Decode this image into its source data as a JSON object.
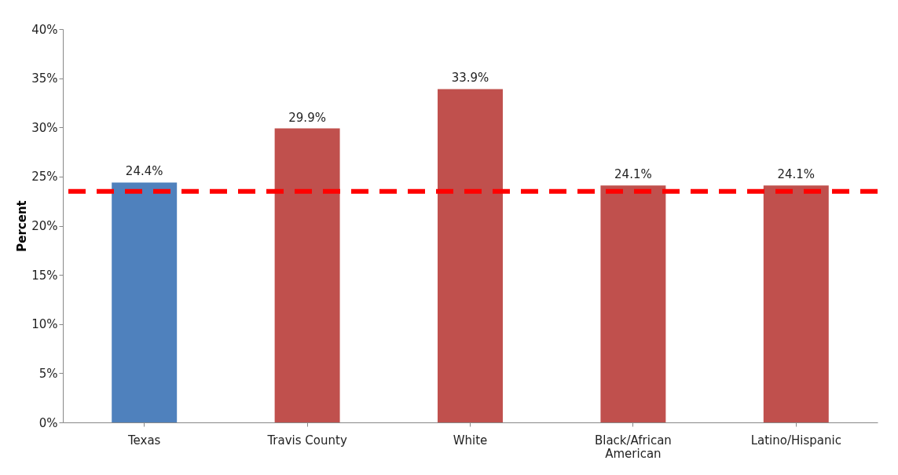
{
  "chart_data": {
    "type": "bar",
    "ylabel": "Percent",
    "categories": [
      "Texas",
      "Travis County",
      "White",
      "Black/African American",
      "Latino/Hispanic"
    ],
    "values": [
      24.4,
      29.9,
      33.9,
      24.1,
      24.1
    ],
    "colors": [
      "#4f81bd",
      "#c0504d",
      "#c0504d",
      "#c0504d",
      "#c0504d"
    ],
    "value_labels": [
      "24.4%",
      "29.9%",
      "33.9%",
      "24.1%",
      "24.1%"
    ],
    "ylim": [
      0,
      40
    ],
    "yticks": [
      {
        "value": 0,
        "label": "0%"
      },
      {
        "value": 5,
        "label": "5%"
      },
      {
        "value": 10,
        "label": "10%"
      },
      {
        "value": 15,
        "label": "15%"
      },
      {
        "value": 20,
        "label": "20%"
      },
      {
        "value": 25,
        "label": "25%"
      },
      {
        "value": 30,
        "label": "30%"
      },
      {
        "value": 35,
        "label": "35%"
      },
      {
        "value": 40,
        "label": "40%"
      }
    ],
    "ref_lines": [
      {
        "axis": "y",
        "value": 23.5,
        "label": null,
        "color": "#ff0000",
        "line_style": "dashed"
      }
    ],
    "grid": false
  }
}
